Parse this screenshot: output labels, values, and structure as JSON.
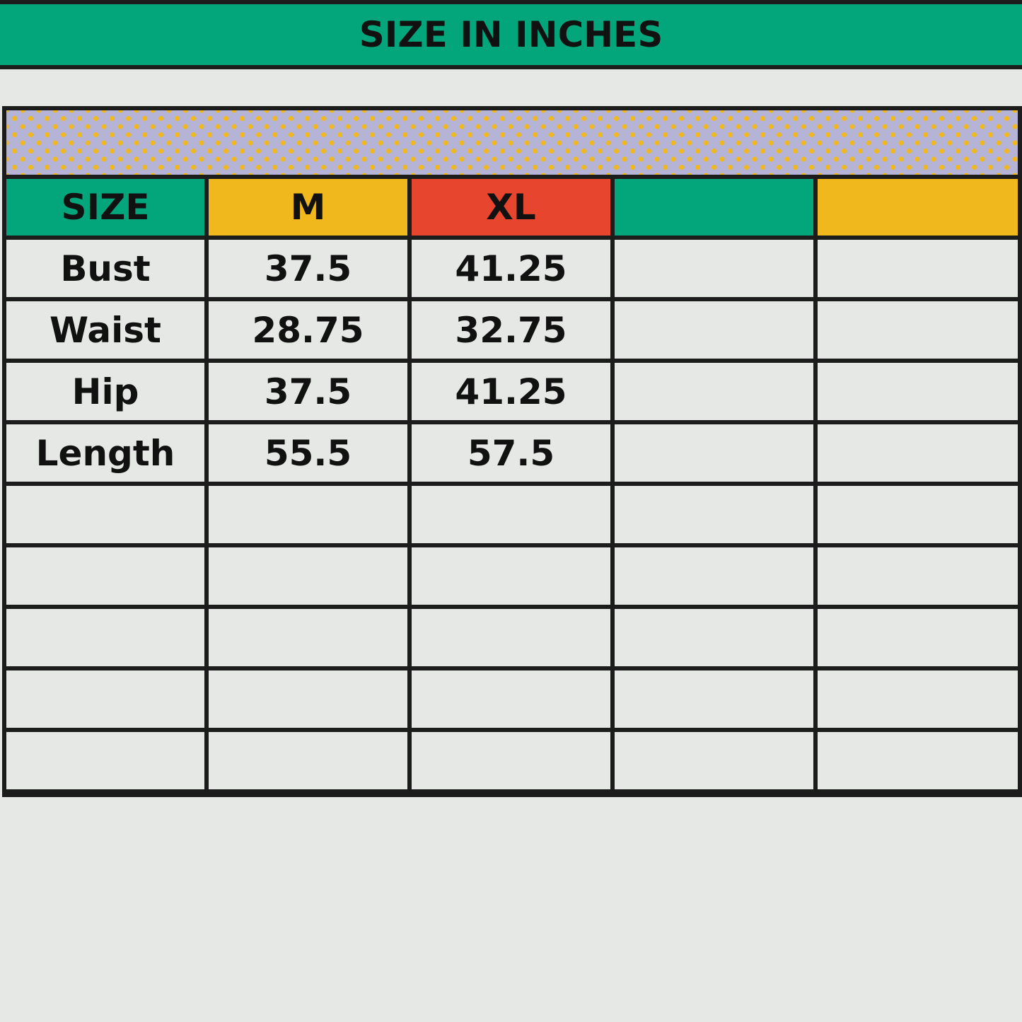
{
  "title": "SIZE IN INCHES",
  "colors": {
    "green": "#03a57a",
    "yellow": "#f0b81d",
    "red": "#e8452f",
    "pattern_bg": "#b6b4d6",
    "background": "#e6e8e6"
  },
  "table": {
    "headers": [
      {
        "label": "SIZE",
        "color": "#03a57a"
      },
      {
        "label": "M",
        "color": "#f0b81d"
      },
      {
        "label": "XL",
        "color": "#e8452f"
      },
      {
        "label": "",
        "color": "#03a57a"
      },
      {
        "label": "",
        "color": "#f0b81d"
      }
    ],
    "rows": [
      [
        "Bust",
        "37.5",
        "41.25",
        "",
        ""
      ],
      [
        "Waist",
        "28.75",
        "32.75",
        "",
        ""
      ],
      [
        "Hip",
        "37.5",
        "41.25",
        "",
        ""
      ],
      [
        "Length",
        "55.5",
        "57.5",
        "",
        ""
      ],
      [
        "",
        "",
        "",
        "",
        ""
      ],
      [
        "",
        "",
        "",
        "",
        ""
      ],
      [
        "",
        "",
        "",
        "",
        ""
      ],
      [
        "",
        "",
        "",
        "",
        ""
      ],
      [
        "",
        "",
        "",
        "",
        ""
      ]
    ]
  }
}
